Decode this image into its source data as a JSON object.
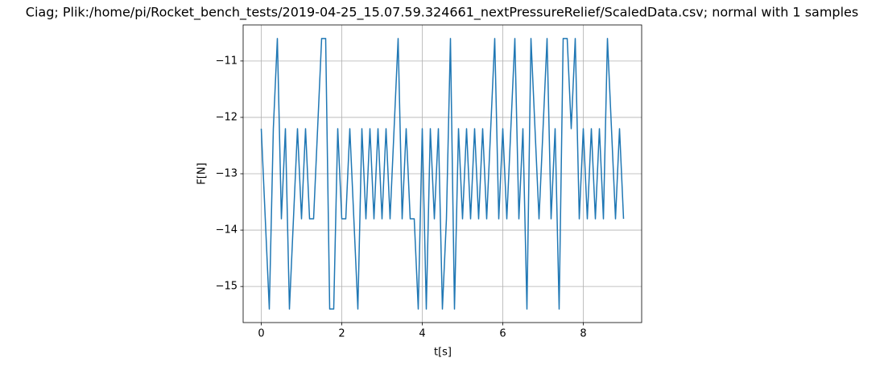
{
  "chart_data": {
    "type": "line",
    "title": "Ciag; Plik:/home/pi/Rocket_bench_tests/2019-04-25_15.07.59.324661_nextPressureRelief/ScaledData.csv; normal with 1 samples",
    "xlabel": "t[s]",
    "ylabel": "F[N]",
    "x": [
      0,
      0.1,
      0.2,
      0.3,
      0.4,
      0.5,
      0.6,
      0.7,
      0.8,
      0.9,
      1,
      1.1,
      1.2,
      1.3,
      1.4,
      1.5,
      1.6,
      1.7,
      1.8,
      1.9,
      2,
      2.1,
      2.2,
      2.3,
      2.4,
      2.5,
      2.6,
      2.7,
      2.8,
      2.9,
      3,
      3.1,
      3.2,
      3.3,
      3.4,
      3.5,
      3.6,
      3.7,
      3.8,
      3.9,
      4,
      4.1,
      4.2,
      4.3,
      4.4,
      4.5,
      4.6,
      4.7,
      4.8,
      4.9,
      5,
      5.1,
      5.2,
      5.3,
      5.4,
      5.5,
      5.6,
      5.7,
      5.8,
      5.9,
      6,
      6.1,
      6.2,
      6.3,
      6.4,
      6.5,
      6.6,
      6.7,
      6.8,
      6.9,
      7,
      7.1,
      7.2,
      7.3,
      7.4,
      7.5,
      7.6,
      7.7,
      7.8,
      7.9,
      8,
      8.1,
      8.2,
      8.3,
      8.4,
      8.5,
      8.6,
      8.7,
      8.8,
      8.9,
      9
    ],
    "series": [
      {
        "name": "F[N]",
        "color": "#1f77b4",
        "values": [
          -12.2,
          -13.8,
          -15.4,
          -12.2,
          -10.6,
          -13.8,
          -12.2,
          -15.4,
          -13.8,
          -12.2,
          -13.8,
          -12.2,
          -13.8,
          -13.8,
          -12.2,
          -10.6,
          -10.6,
          -15.4,
          -15.4,
          -12.2,
          -13.8,
          -13.8,
          -12.2,
          -13.8,
          -15.4,
          -12.2,
          -13.8,
          -12.2,
          -13.8,
          -12.2,
          -13.8,
          -12.2,
          -13.8,
          -12.2,
          -10.6,
          -13.8,
          -12.2,
          -13.8,
          -13.8,
          -15.4,
          -12.2,
          -15.4,
          -12.2,
          -13.8,
          -12.2,
          -15.4,
          -13.8,
          -10.6,
          -15.4,
          -12.2,
          -13.8,
          -12.2,
          -13.8,
          -12.2,
          -13.8,
          -12.2,
          -13.8,
          -12.2,
          -10.6,
          -13.8,
          -12.2,
          -13.8,
          -12.2,
          -10.6,
          -13.8,
          -12.2,
          -15.4,
          -10.6,
          -12.2,
          -13.8,
          -12.2,
          -10.6,
          -13.8,
          -12.2,
          -15.4,
          -10.6,
          -10.6,
          -12.2,
          -10.6,
          -13.8,
          -12.2,
          -13.8,
          -12.2,
          -13.8,
          -12.2,
          -13.8,
          -10.6,
          -12.2,
          -13.8,
          -12.2,
          -13.8
        ]
      }
    ],
    "xlim": [
      -0.45,
      9.45
    ],
    "ylim": [
      -15.64,
      -10.36
    ],
    "xticks": [
      0,
      2,
      4,
      6,
      8
    ],
    "yticks": [
      {
        "value": -15,
        "label": "−15"
      },
      {
        "value": -14,
        "label": "−14"
      },
      {
        "value": -13,
        "label": "−13"
      },
      {
        "value": -12,
        "label": "−12"
      },
      {
        "value": -11,
        "label": "−11"
      }
    ],
    "grid": true
  }
}
